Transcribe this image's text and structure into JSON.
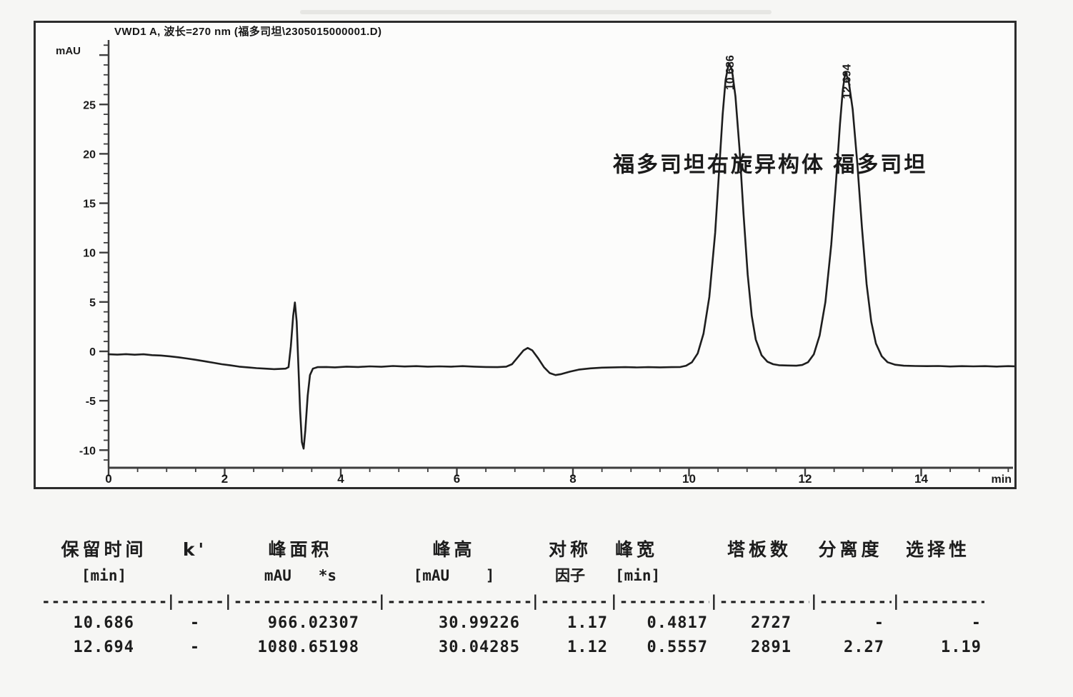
{
  "chart_data": {
    "type": "line",
    "title": "VWD1 A, 波长=270 nm (福多司坦\\2305015000001.D)",
    "xlabel": "min",
    "ylabel": "mAU",
    "xlim": [
      0,
      15.6
    ],
    "ylim": [
      -11.8,
      31.0
    ],
    "x_major_ticks": [
      0,
      2,
      4,
      6,
      8,
      10,
      12,
      14
    ],
    "x_minor_step": 0.5,
    "y_major_ticks": [
      -10,
      -5,
      0,
      5,
      10,
      15,
      20,
      25
    ],
    "y_minor_step": 1,
    "grid": false,
    "trace_color": "#1e1e1e",
    "annotation": {
      "text": "福多司坦右旋异构体 福多司坦",
      "x": 8.69,
      "y": 18.2
    },
    "peak_labels": [
      {
        "x": 10.686,
        "apex": 29.2,
        "label": "10.686"
      },
      {
        "x": 12.694,
        "apex": 28.3,
        "label": "12.694"
      }
    ],
    "series": [
      {
        "name": "VWD1 A",
        "points": [
          [
            0.0,
            -0.3
          ],
          [
            0.15,
            -0.33
          ],
          [
            0.3,
            -0.28
          ],
          [
            0.45,
            -0.34
          ],
          [
            0.6,
            -0.3
          ],
          [
            0.75,
            -0.38
          ],
          [
            0.9,
            -0.42
          ],
          [
            1.05,
            -0.5
          ],
          [
            1.2,
            -0.6
          ],
          [
            1.35,
            -0.72
          ],
          [
            1.5,
            -0.85
          ],
          [
            1.65,
            -1.0
          ],
          [
            1.8,
            -1.15
          ],
          [
            1.95,
            -1.3
          ],
          [
            2.1,
            -1.42
          ],
          [
            2.25,
            -1.55
          ],
          [
            2.4,
            -1.62
          ],
          [
            2.55,
            -1.7
          ],
          [
            2.7,
            -1.75
          ],
          [
            2.85,
            -1.8
          ],
          [
            2.95,
            -1.78
          ],
          [
            3.05,
            -1.75
          ],
          [
            3.1,
            -1.6
          ],
          [
            3.14,
            0.5
          ],
          [
            3.18,
            3.6
          ],
          [
            3.21,
            4.95
          ],
          [
            3.24,
            3.0
          ],
          [
            3.27,
            -1.5
          ],
          [
            3.3,
            -6.0
          ],
          [
            3.33,
            -9.2
          ],
          [
            3.36,
            -9.85
          ],
          [
            3.39,
            -8.0
          ],
          [
            3.43,
            -4.5
          ],
          [
            3.47,
            -2.4
          ],
          [
            3.52,
            -1.75
          ],
          [
            3.6,
            -1.6
          ],
          [
            3.75,
            -1.58
          ],
          [
            3.9,
            -1.62
          ],
          [
            4.1,
            -1.55
          ],
          [
            4.3,
            -1.58
          ],
          [
            4.5,
            -1.52
          ],
          [
            4.7,
            -1.56
          ],
          [
            4.9,
            -1.48
          ],
          [
            5.1,
            -1.53
          ],
          [
            5.3,
            -1.5
          ],
          [
            5.5,
            -1.55
          ],
          [
            5.7,
            -1.52
          ],
          [
            5.9,
            -1.55
          ],
          [
            6.1,
            -1.5
          ],
          [
            6.3,
            -1.55
          ],
          [
            6.5,
            -1.58
          ],
          [
            6.7,
            -1.6
          ],
          [
            6.85,
            -1.55
          ],
          [
            6.95,
            -1.3
          ],
          [
            7.05,
            -0.6
          ],
          [
            7.15,
            0.1
          ],
          [
            7.22,
            0.35
          ],
          [
            7.3,
            0.1
          ],
          [
            7.4,
            -0.7
          ],
          [
            7.5,
            -1.6
          ],
          [
            7.6,
            -2.2
          ],
          [
            7.7,
            -2.4
          ],
          [
            7.8,
            -2.3
          ],
          [
            7.95,
            -2.05
          ],
          [
            8.1,
            -1.85
          ],
          [
            8.3,
            -1.72
          ],
          [
            8.5,
            -1.65
          ],
          [
            8.7,
            -1.62
          ],
          [
            8.9,
            -1.6
          ],
          [
            9.1,
            -1.63
          ],
          [
            9.3,
            -1.6
          ],
          [
            9.5,
            -1.62
          ],
          [
            9.7,
            -1.6
          ],
          [
            9.85,
            -1.58
          ],
          [
            9.95,
            -1.45
          ],
          [
            10.05,
            -1.1
          ],
          [
            10.15,
            -0.2
          ],
          [
            10.25,
            1.8
          ],
          [
            10.35,
            5.5
          ],
          [
            10.45,
            12.0
          ],
          [
            10.52,
            18.5
          ],
          [
            10.58,
            24.0
          ],
          [
            10.63,
            27.5
          ],
          [
            10.686,
            29.2
          ],
          [
            10.74,
            28.5
          ],
          [
            10.8,
            25.8
          ],
          [
            10.87,
            20.5
          ],
          [
            10.94,
            13.8
          ],
          [
            11.01,
            7.8
          ],
          [
            11.08,
            3.6
          ],
          [
            11.15,
            1.2
          ],
          [
            11.25,
            -0.4
          ],
          [
            11.35,
            -1.05
          ],
          [
            11.45,
            -1.3
          ],
          [
            11.55,
            -1.4
          ],
          [
            11.7,
            -1.43
          ],
          [
            11.85,
            -1.45
          ],
          [
            11.95,
            -1.38
          ],
          [
            12.05,
            -1.1
          ],
          [
            12.15,
            -0.3
          ],
          [
            12.25,
            1.6
          ],
          [
            12.35,
            5.0
          ],
          [
            12.45,
            10.8
          ],
          [
            12.53,
            17.0
          ],
          [
            12.6,
            23.0
          ],
          [
            12.65,
            26.5
          ],
          [
            12.694,
            28.3
          ],
          [
            12.75,
            27.4
          ],
          [
            12.82,
            24.5
          ],
          [
            12.9,
            19.0
          ],
          [
            12.98,
            12.5
          ],
          [
            13.06,
            6.8
          ],
          [
            13.14,
            3.0
          ],
          [
            13.22,
            0.8
          ],
          [
            13.32,
            -0.5
          ],
          [
            13.42,
            -1.1
          ],
          [
            13.55,
            -1.35
          ],
          [
            13.7,
            -1.45
          ],
          [
            13.9,
            -1.48
          ],
          [
            14.1,
            -1.5
          ],
          [
            14.3,
            -1.48
          ],
          [
            14.5,
            -1.53
          ],
          [
            14.7,
            -1.5
          ],
          [
            14.9,
            -1.52
          ],
          [
            15.1,
            -1.5
          ],
          [
            15.3,
            -1.54
          ],
          [
            15.5,
            -1.5
          ],
          [
            15.6,
            -1.51
          ]
        ]
      }
    ]
  },
  "table": {
    "headers_line1": [
      "保留时间",
      "k'",
      "峰面积",
      "峰高",
      "对称",
      "峰宽",
      "塔板数",
      "分离度",
      "选择性"
    ],
    "headers_line2": [
      "[min]",
      "",
      "mAU   *s",
      "[mAU    ]",
      "因子",
      "[min]",
      "",
      "",
      ""
    ],
    "separator": [
      "----------------",
      "|-------",
      "|-------------------",
      "|-------------------",
      "|---------",
      "|------------",
      "|------------",
      "|---------",
      "|-----------"
    ],
    "rows": [
      [
        "10.686",
        "-",
        "966.02307",
        "30.99226",
        "1.17",
        "0.4817",
        "2727",
        "-",
        "-"
      ],
      [
        "12.694",
        "-",
        "1080.65198",
        "30.04285",
        "1.12",
        "0.5557",
        "2891",
        "2.27",
        "1.19"
      ]
    ]
  }
}
